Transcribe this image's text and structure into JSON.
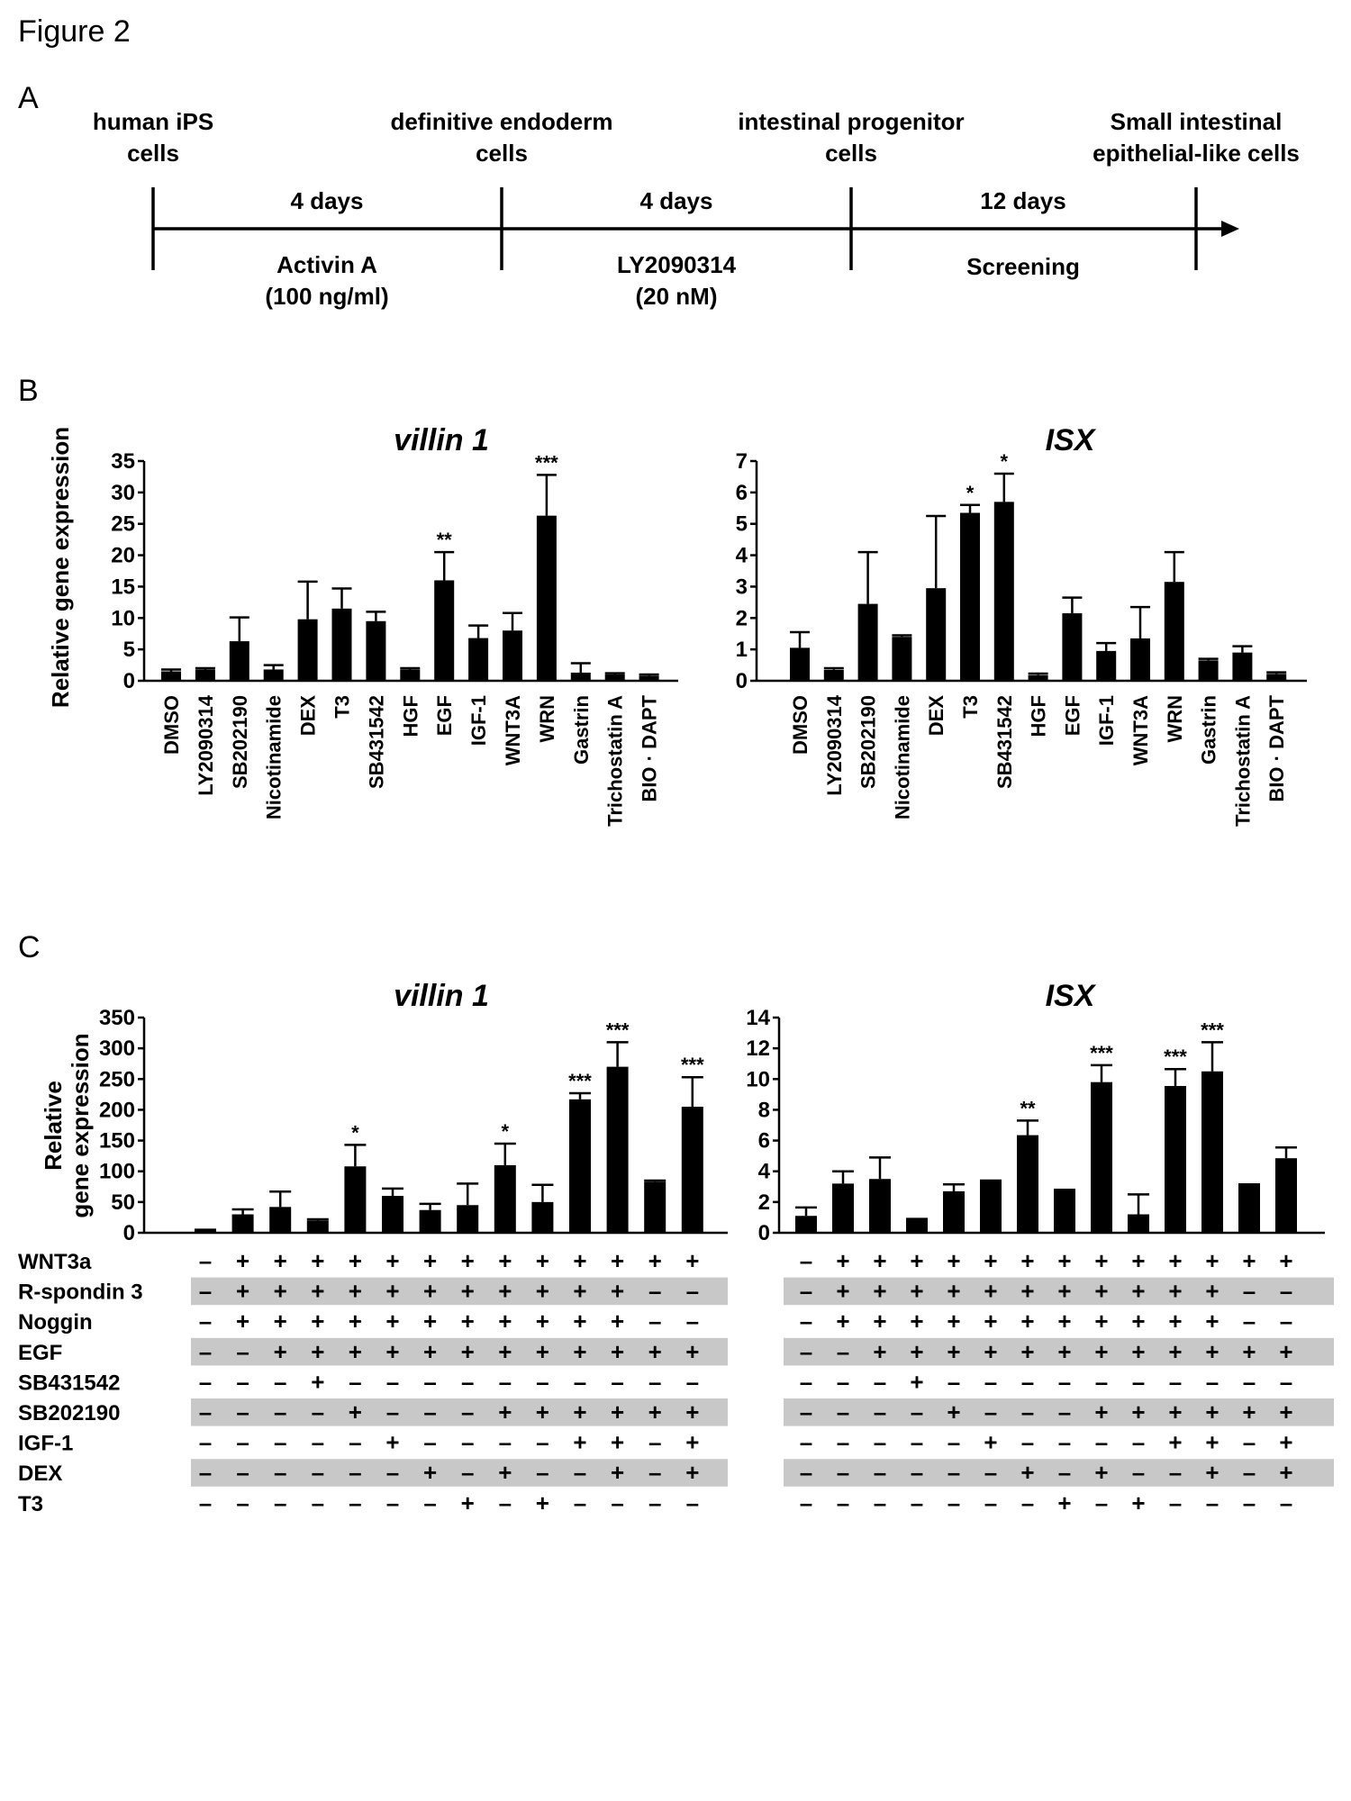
{
  "figure_title": "Figure 2",
  "panel_a": {
    "label": "A",
    "stages": [
      {
        "line1": "human iPS",
        "line2": "cells"
      },
      {
        "line1": "definitive endoderm",
        "line2": "cells"
      },
      {
        "line1": "intestinal progenitor",
        "line2": "cells"
      },
      {
        "line1": "Small intestinal",
        "line2": "epithelial-like cells"
      }
    ],
    "intervals": [
      {
        "duration": "4 days",
        "treatment1": "Activin A",
        "treatment2": "(100 ng/ml)"
      },
      {
        "duration": "4 days",
        "treatment1": "LY2090314",
        "treatment2": "(20 nM)"
      },
      {
        "duration": "12 days",
        "treatment1": "Screening",
        "treatment2": ""
      }
    ]
  },
  "panel_b_label": "B",
  "panel_c_label": "C",
  "chart_data": [
    {
      "id": "b-villin",
      "panel": "B",
      "type": "bar",
      "title": "villin 1",
      "ylabel": "Relative  gene expression",
      "ylim": [
        0,
        35
      ],
      "yticks": [
        0,
        5,
        10,
        15,
        20,
        25,
        30,
        35
      ],
      "categories": [
        "DMSO",
        "LY2090314",
        "SB202190",
        "Nicotinamide",
        "DEX",
        "T3",
        "SB431542",
        "HGF",
        "EGF",
        "IGF-1",
        "WNT3A",
        "WRN",
        "Gastrin",
        "Trichostatin A",
        "BIO · DAPT"
      ],
      "values": [
        1.5,
        1.8,
        6.3,
        1.8,
        9.8,
        11.5,
        9.5,
        1.8,
        16.0,
        6.8,
        8.0,
        26.3,
        1.3,
        1.0,
        0.8
      ],
      "errors": [
        0.3,
        0.2,
        3.8,
        0.7,
        6.0,
        3.2,
        1.5,
        0.2,
        4.5,
        2.0,
        2.8,
        6.5,
        1.5,
        0.2,
        0.2
      ],
      "significance": [
        "",
        "",
        "",
        "",
        "",
        "",
        "",
        "",
        "**",
        "",
        "",
        "***",
        "",
        "",
        ""
      ]
    },
    {
      "id": "b-isx",
      "panel": "B",
      "type": "bar",
      "title": "ISX",
      "ylabel": "",
      "ylim": [
        0,
        7
      ],
      "yticks": [
        0,
        1,
        2,
        3,
        4,
        5,
        6,
        7
      ],
      "categories": [
        "DMSO",
        "LY2090314",
        "SB202190",
        "Nicotinamide",
        "DEX",
        "T3",
        "SB431542",
        "HGF",
        "EGF",
        "IGF-1",
        "WNT3A",
        "WRN",
        "Gastrin",
        "Trichostatin A",
        "BIO · DAPT"
      ],
      "values": [
        1.05,
        0.35,
        2.45,
        1.4,
        2.95,
        5.35,
        5.7,
        0.18,
        2.15,
        0.95,
        1.35,
        3.15,
        0.65,
        0.9,
        0.22
      ],
      "errors": [
        0.5,
        0.05,
        1.65,
        0.05,
        2.3,
        0.25,
        0.9,
        0.05,
        0.5,
        0.25,
        1.0,
        0.95,
        0.05,
        0.2,
        0.05
      ],
      "significance": [
        "",
        "",
        "",
        "",
        "",
        "*",
        "*",
        "",
        "",
        "",
        "",
        "",
        "",
        "",
        ""
      ]
    },
    {
      "id": "c-villin",
      "panel": "C",
      "type": "bar",
      "title": "villin 1",
      "ylabel": "Relative gene expression",
      "ylabel_line1": "Relative",
      "ylabel_line2": "gene expression",
      "ylim": [
        0,
        350
      ],
      "yticks": [
        0,
        50,
        100,
        150,
        200,
        250,
        300,
        350
      ],
      "values": [
        4,
        30,
        42,
        20,
        108,
        60,
        37,
        45,
        110,
        50,
        217,
        270,
        83,
        205
      ],
      "errors": [
        1,
        8,
        25,
        2,
        35,
        12,
        10,
        35,
        35,
        28,
        10,
        40,
        2,
        48
      ],
      "significance": [
        "",
        "",
        "",
        "",
        "*",
        "",
        "",
        "",
        "*",
        "",
        "***",
        "***",
        "",
        "***"
      ]
    },
    {
      "id": "c-isx",
      "panel": "C",
      "type": "bar",
      "title": "ISX",
      "ylabel": "",
      "ylim": [
        0,
        14
      ],
      "yticks": [
        0,
        2,
        4,
        6,
        8,
        10,
        12,
        14
      ],
      "values": [
        1.1,
        3.2,
        3.5,
        0.85,
        2.7,
        3.35,
        6.35,
        2.75,
        9.8,
        1.2,
        9.55,
        10.5,
        3.1,
        4.85
      ],
      "errors": [
        0.55,
        0.8,
        1.4,
        0.05,
        0.45,
        0.05,
        0.95,
        0.05,
        1.1,
        1.3,
        1.1,
        1.9,
        0.05,
        0.7
      ],
      "significance": [
        "",
        "",
        "",
        "",
        "",
        "",
        "**",
        "",
        "***",
        "",
        "***",
        "***",
        "",
        ""
      ]
    }
  ],
  "treatment_table": {
    "rows": [
      {
        "label": "WNT3a",
        "signs": [
          "–",
          "+",
          "+",
          "+",
          "+",
          "+",
          "+",
          "+",
          "+",
          "+",
          "+",
          "+",
          "+",
          "+"
        ]
      },
      {
        "label": "R-spondin 3",
        "signs": [
          "–",
          "+",
          "+",
          "+",
          "+",
          "+",
          "+",
          "+",
          "+",
          "+",
          "+",
          "+",
          "–",
          "–"
        ]
      },
      {
        "label": "Noggin",
        "signs": [
          "–",
          "+",
          "+",
          "+",
          "+",
          "+",
          "+",
          "+",
          "+",
          "+",
          "+",
          "+",
          "–",
          "–"
        ]
      },
      {
        "label": "EGF",
        "signs": [
          "–",
          "–",
          "+",
          "+",
          "+",
          "+",
          "+",
          "+",
          "+",
          "+",
          "+",
          "+",
          "+",
          "+"
        ]
      },
      {
        "label": "SB431542",
        "signs": [
          "–",
          "–",
          "–",
          "+",
          "–",
          "–",
          "–",
          "–",
          "–",
          "–",
          "–",
          "–",
          "–",
          "–"
        ]
      },
      {
        "label": "SB202190",
        "signs": [
          "–",
          "–",
          "–",
          "–",
          "+",
          "–",
          "–",
          "–",
          "+",
          "+",
          "+",
          "+",
          "+",
          "+"
        ]
      },
      {
        "label": "IGF-1",
        "signs": [
          "–",
          "–",
          "–",
          "–",
          "–",
          "+",
          "–",
          "–",
          "–",
          "–",
          "+",
          "+",
          "–",
          "+"
        ]
      },
      {
        "label": "DEX",
        "signs": [
          "–",
          "–",
          "–",
          "–",
          "–",
          "–",
          "+",
          "–",
          "+",
          "–",
          "–",
          "+",
          "–",
          "+"
        ]
      },
      {
        "label": "T3",
        "signs": [
          "–",
          "–",
          "–",
          "–",
          "–",
          "–",
          "–",
          "+",
          "–",
          "+",
          "–",
          "–",
          "–",
          "–"
        ]
      }
    ],
    "shaded_row_color": "#c8c8c8"
  }
}
